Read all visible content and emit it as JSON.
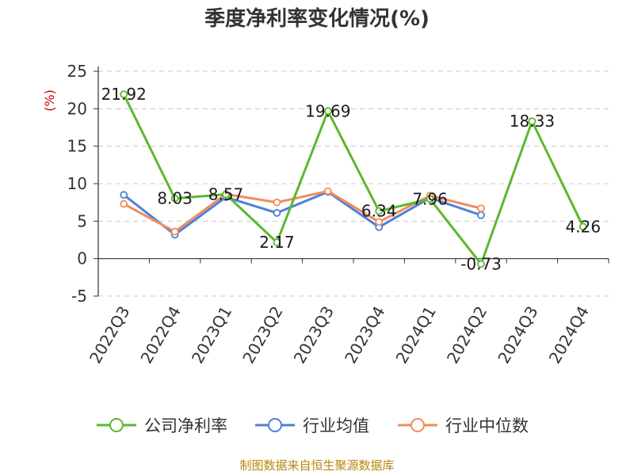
{
  "chart_data": {
    "type": "line",
    "title": "季度净利率变化情况(%)",
    "ylabel": "(%)",
    "categories": [
      "2022Q3",
      "2022Q4",
      "2023Q1",
      "2023Q2",
      "2023Q3",
      "2023Q4",
      "2024Q1",
      "2024Q2",
      "2024Q3",
      "2024Q4"
    ],
    "ylim": [
      -5,
      25
    ],
    "yticks": [
      "-5",
      "0",
      "5",
      "10",
      "15",
      "20",
      "25"
    ],
    "grid": true,
    "legend": "bottom",
    "series": [
      {
        "name": "公司净利率",
        "color": "#5cb82e",
        "values": [
          21.92,
          8.03,
          8.57,
          2.17,
          19.69,
          6.34,
          7.96,
          -0.73,
          18.33,
          4.26
        ],
        "labels": [
          "21.92",
          "8.03",
          "8.57",
          "2.17",
          "19.69",
          "6.34",
          "7.96",
          "-0.73",
          "18.33",
          "4.26"
        ]
      },
      {
        "name": "行业均值",
        "color": "#4f7fd8",
        "values": [
          8.5,
          3.2,
          8.2,
          6.1,
          8.9,
          4.2,
          8.1,
          5.8,
          null,
          null
        ]
      },
      {
        "name": "行业中位数",
        "color": "#f28c5a",
        "values": [
          7.3,
          3.6,
          8.6,
          7.5,
          9.0,
          4.9,
          8.4,
          6.7,
          null,
          null
        ]
      }
    ]
  },
  "source": "制图数据来自恒生聚源数据库"
}
